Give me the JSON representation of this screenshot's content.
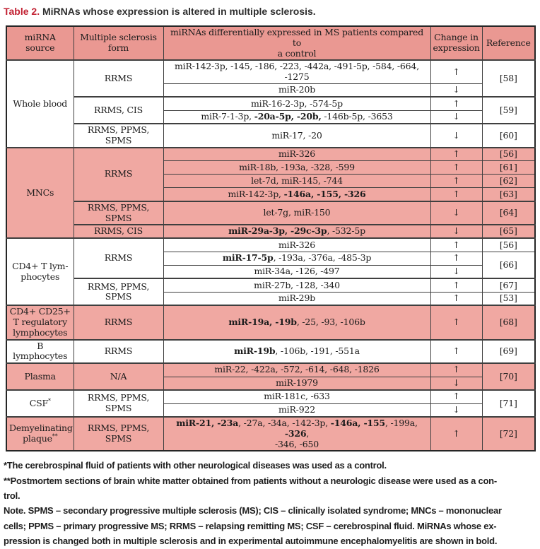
{
  "title": {
    "label": "Table 2.",
    "text": " MiRNAs whose expression is altered in multiple sclerosis."
  },
  "colors": {
    "header_bg": "#ea9892",
    "row_pink": "#f0a8a2",
    "row_white": "#ffffff",
    "title_red": "#c22233",
    "border": "#3f3f3f"
  },
  "header": {
    "source": "miRNA source",
    "form": "Multiple sclerosis\nform",
    "mirnas": "miRNAs differentially expressed in MS patients compared to\na control",
    "change": "Change in\nexpression",
    "reference": "Reference"
  },
  "arrows": {
    "up": "↑",
    "down": "↓"
  },
  "rows": [
    {
      "source": "Whole blood",
      "form": "RRMS",
      "mirnas": "miR-142-3p, -145, -186, -223, -442a, -491-5p, -584, -664, -1275",
      "change": "↑",
      "ref": "[58]"
    },
    {
      "mirnas": "miR-20b",
      "change": "↓"
    },
    {
      "form": "RRMS, CIS",
      "mirnas": "miR-16-2-3p, -574-5p",
      "change": "↑",
      "ref": "[59]"
    },
    {
      "segments": [
        {
          "t": "miR-7-1-3p, "
        },
        {
          "t": "-20a-5p, -20b,",
          "b": true
        },
        {
          "t": " -146b-5p, -3653"
        }
      ],
      "change": "↓"
    },
    {
      "form": "RRMS, PPMS,\nSPMS",
      "mirnas": "miR-17, -20",
      "change": "↓",
      "ref": "[60]"
    },
    {
      "source": "MNCs",
      "form": "RRMS",
      "mirnas": "miR-326",
      "change": "↑",
      "ref": "[56]"
    },
    {
      "mirnas": "miR-18b, -193a, -328, -599",
      "change": "↑",
      "ref": "[61]"
    },
    {
      "mirnas": "let-7d, miR-145, -744",
      "change": "↑",
      "ref": "[62]"
    },
    {
      "segments": [
        {
          "t": "miR-142-3p, "
        },
        {
          "t": "-146a, -155, -326",
          "b": true
        }
      ],
      "change": "↑",
      "ref": "[63]"
    },
    {
      "form": "RRMS, PPMS,\nSPMS",
      "mirnas": "let-7g, miR-150",
      "change": "↓",
      "ref": "[64]"
    },
    {
      "form": "RRMS, CIS",
      "segments": [
        {
          "t": "miR-29a-3p, -29c-3p",
          "b": true
        },
        {
          "t": ", -532-5p"
        }
      ],
      "change": "↓",
      "ref": "[65]"
    },
    {
      "source": "CD4+ T lym-\nphocytes",
      "form": "RRMS",
      "mirnas": "miR-326",
      "change": "↑",
      "ref": "[56]"
    },
    {
      "segments": [
        {
          "t": "miR-17-5p",
          "b": true
        },
        {
          "t": ", -193a, -376a, -485-3p"
        }
      ],
      "change": "↑",
      "ref": "[66]"
    },
    {
      "mirnas": "miR-34a, -126, -497",
      "change": "↓"
    },
    {
      "form": "RRMS, PPMS,\nSPMS",
      "mirnas": "miR-27b, -128, -340",
      "change": "↑",
      "ref": "[67]"
    },
    {
      "mirnas": "miR-29b",
      "change": "↑",
      "ref": "[53]"
    },
    {
      "source": "CD4+ CD25+\nT regulatory\nlymphocytes",
      "form": "RRMS",
      "segments": [
        {
          "t": "miR-19a, -19b",
          "b": true
        },
        {
          "t": ", -25, -93, -106b"
        }
      ],
      "change": "↑",
      "ref": "[68]"
    },
    {
      "source": "B lymphocytes",
      "form": "RRMS",
      "segments": [
        {
          "t": "miR-19b",
          "b": true
        },
        {
          "t": ", -106b, -191, -551a"
        }
      ],
      "change": "↑",
      "ref": "[69]"
    },
    {
      "source": "Plasma",
      "form": "N/A",
      "mirnas": "miR-22, -422a, -572, -614, -648, -1826",
      "change": "↑",
      "ref": "[70]"
    },
    {
      "mirnas": "miR-1979",
      "change": "↓"
    },
    {
      "source": "CSF",
      "source_sup": "*",
      "form": "RRMS, PPMS,\nSPMS",
      "mirnas": "miR-181c, -633",
      "change": "↑",
      "ref": "[71]"
    },
    {
      "mirnas": "miR-922",
      "change": "↓"
    },
    {
      "source": "Demyelinating\nplaque",
      "source_sup": "**",
      "form": "RRMS, PPMS,\nSPMS",
      "segments": [
        {
          "t": "miR-21, -23a",
          "b": true
        },
        {
          "t": ", -27a, -34a, -142-3p, "
        },
        {
          "t": "-146a, -155",
          "b": true
        },
        {
          "t": ", -199a, "
        },
        {
          "t": "-326",
          "b": true
        },
        {
          "t": ",\n-346, -650"
        }
      ],
      "change": "↑",
      "ref": "[72]"
    }
  ],
  "footnotes": {
    "lines": [
      "*The cerebrospinal fluid of patients with other neurological diseases was used as a control.",
      "**Postmortem sections of brain white matter obtained from patients without a neurologic disease were used as a con-",
      "trol.",
      "Note. SPMS – secondary progressive multiple sclerosis (MS); CIS – clinically isolated syndrome; MNCs – mononuclear",
      "cells; PPMS – primary progressive MS; RRMS – relapsing remitting MS; CSF – cerebrospinal fluid. MiRNAs whose ex-",
      "pression is changed both in multiple sclerosis and in experimental autoimmune encephalomyelitis are shown in bold."
    ]
  }
}
